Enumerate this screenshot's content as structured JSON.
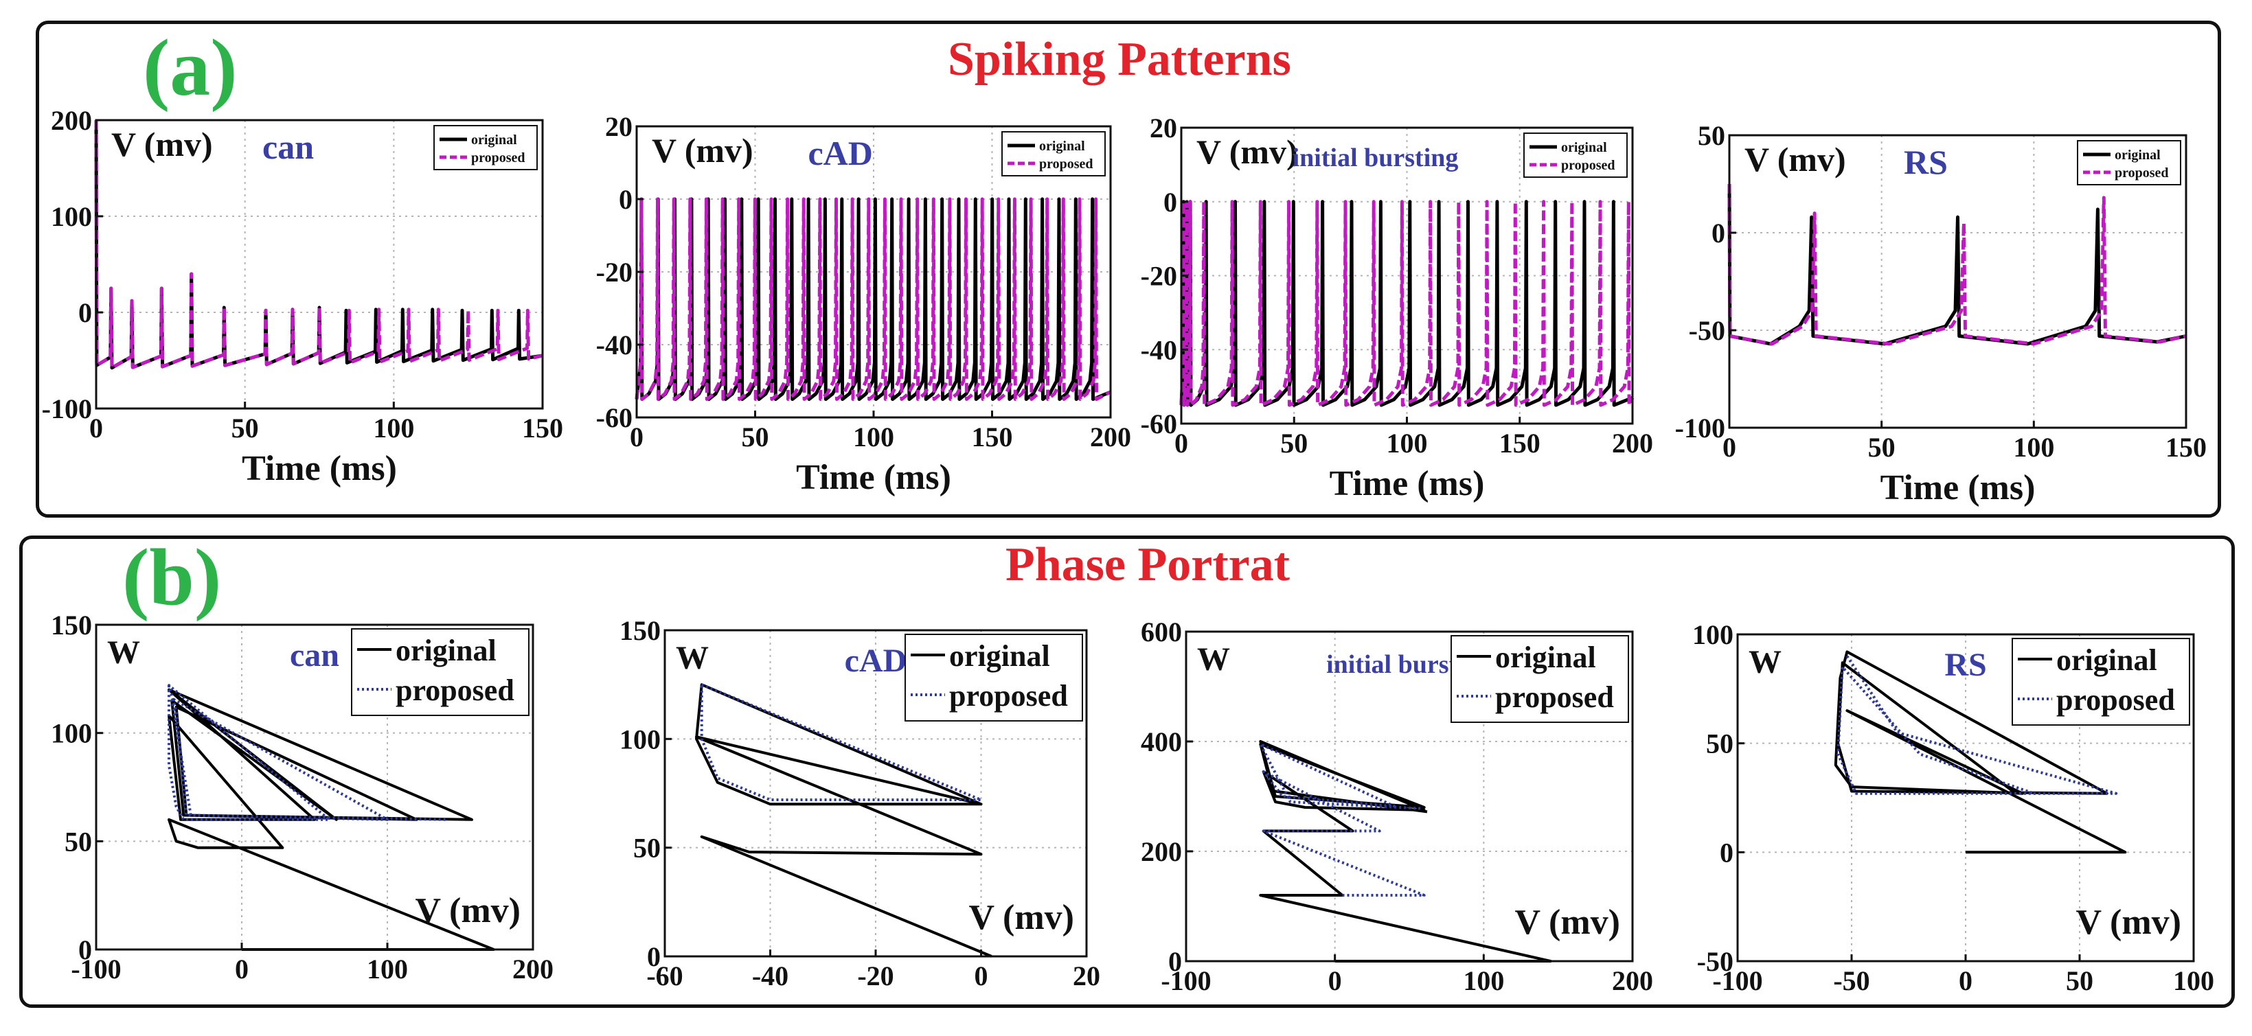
{
  "panels": {
    "a": {
      "letter": "(a)",
      "title": "Spiking Patterns"
    },
    "b": {
      "letter": "(b)",
      "title": "Phase Portrat"
    }
  },
  "colors": {
    "original": "#000000",
    "proposed_spike": "#c01bc0",
    "proposed_phase": "#2c3a9c",
    "panel_letter": "#2db34a",
    "panel_title": "#e3232b",
    "subtitle": "#3a3fa6",
    "grid": "#b5b5b5"
  },
  "chart_data": [
    {
      "type": "line",
      "row": "spiking",
      "title": "can",
      "ylabel": "V (mv)",
      "xlabel": "Time (ms)",
      "xlim": [
        0,
        150
      ],
      "ylim": [
        -100,
        200
      ],
      "xticks": [
        0,
        50,
        100,
        150
      ],
      "yticks": [
        -100,
        0,
        100,
        200
      ],
      "xticklabels": [
        "0",
        "50",
        "100",
        "150"
      ],
      "yticklabels": [
        "-100",
        "0",
        "100",
        "200"
      ],
      "legend": [
        "original",
        "proposed"
      ],
      "series": [
        {
          "name": "original",
          "start": 200,
          "baseline_start": -55,
          "baseline_end": -45,
          "reset": -55,
          "spikes": [
            [
              5,
              25
            ],
            [
              12,
              12
            ],
            [
              22,
              25
            ],
            [
              32,
              40
            ],
            [
              43,
              5
            ],
            [
              57,
              2
            ],
            [
              66,
              3
            ],
            [
              75,
              5
            ],
            [
              84,
              2
            ],
            [
              94,
              3
            ],
            [
              103,
              3
            ],
            [
              113,
              3
            ],
            [
              123,
              2
            ],
            [
              133,
              2
            ],
            [
              142,
              2
            ]
          ]
        },
        {
          "name": "proposed",
          "start": 200,
          "baseline_start": -55,
          "baseline_end": -45,
          "reset": -55,
          "spikes": [
            [
              5,
              25
            ],
            [
              12,
              12
            ],
            [
              22,
              25
            ],
            [
              32,
              40
            ],
            [
              43,
              5
            ],
            [
              57,
              2
            ],
            [
              66,
              3
            ],
            [
              75,
              5
            ],
            [
              85,
              2
            ],
            [
              95,
              3
            ],
            [
              105,
              3
            ],
            [
              115,
              3
            ],
            [
              125,
              2
            ],
            [
              135,
              2
            ],
            [
              145,
              2
            ]
          ]
        }
      ]
    },
    {
      "type": "line",
      "row": "spiking",
      "title": "cAD",
      "ylabel": "V (mv)",
      "xlabel": "Time (ms)",
      "xlim": [
        0,
        200
      ],
      "ylim": [
        -60,
        20
      ],
      "xticks": [
        0,
        50,
        100,
        150,
        200
      ],
      "yticks": [
        -60,
        -40,
        -20,
        0,
        20
      ],
      "xticklabels": [
        "0",
        "50",
        "100",
        "150",
        "200"
      ],
      "yticklabels": [
        "-60",
        "-40",
        "-20",
        "0",
        "20"
      ],
      "legend": [
        "original",
        "proposed"
      ],
      "series": [
        {
          "name": "original",
          "reset": -55,
          "first": 2,
          "period": 7.05,
          "count": 28,
          "peak": 0,
          "rise_from": -50
        },
        {
          "name": "proposed",
          "reset": -55,
          "first": 2,
          "period": 6.85,
          "count": 29,
          "peak": 0,
          "rise_from": -50
        }
      ]
    },
    {
      "type": "line",
      "row": "spiking",
      "title": "initial bursting",
      "ylabel": "V (mv)",
      "xlabel": "Time (ms)",
      "xlim": [
        0,
        200
      ],
      "ylim": [
        -60,
        20
      ],
      "xticks": [
        0,
        50,
        100,
        150,
        200
      ],
      "yticks": [
        -60,
        -40,
        -20,
        0,
        20
      ],
      "xticklabels": [
        "0",
        "50",
        "100",
        "150",
        "200"
      ],
      "yticklabels": [
        "-60",
        "-40",
        "-20",
        "0",
        "20"
      ],
      "legend": [
        "original",
        "proposed"
      ],
      "series": [
        {
          "name": "original",
          "reset": -55,
          "burst": [
            1,
            2.5,
            4
          ],
          "first": 11,
          "period": 12.9,
          "count": 15,
          "peak": 0,
          "rise_from": -50
        },
        {
          "name": "proposed",
          "reset": -55,
          "burst": [
            1,
            2.5,
            4
          ],
          "first": 10,
          "period": 12.55,
          "count": 16,
          "peak": 0,
          "rise_from": -50
        }
      ]
    },
    {
      "type": "line",
      "row": "spiking",
      "title": "RS",
      "ylabel": "V (mv)",
      "xlabel": "Time (ms)",
      "xlim": [
        0,
        150
      ],
      "ylim": [
        -100,
        50
      ],
      "xticks": [
        0,
        50,
        100,
        150
      ],
      "yticks": [
        -100,
        -50,
        0,
        50
      ],
      "xticklabels": [
        "0",
        "50",
        "100",
        "150"
      ],
      "yticklabels": [
        "-100",
        "-50",
        "0",
        "50"
      ],
      "legend": [
        "original",
        "proposed"
      ],
      "series": [
        {
          "name": "original",
          "start": 25,
          "reset": -53,
          "trough": -57,
          "spikes": [
            [
              27,
              8
            ],
            [
              75,
              8
            ],
            [
              121,
              12
            ]
          ],
          "pre": -40
        },
        {
          "name": "proposed",
          "start": 25,
          "reset": -53,
          "trough": -57,
          "spikes": [
            [
              28,
              10
            ],
            [
              77,
              5
            ],
            [
              123,
              18
            ]
          ],
          "pre": -40
        }
      ]
    },
    {
      "type": "line",
      "row": "phase",
      "title": "can",
      "ylabel": "W",
      "xlabel": "V (mv)",
      "xlim": [
        -100,
        200
      ],
      "ylim": [
        0,
        150
      ],
      "xticks": [
        -100,
        0,
        100,
        200
      ],
      "yticks": [
        0,
        50,
        100,
        150
      ],
      "xticklabels": [
        "-100",
        "0",
        "100",
        "200"
      ],
      "yticklabels": [
        "0",
        "50",
        "100",
        "150"
      ],
      "legend": [
        "original",
        "proposed"
      ],
      "series": [
        {
          "name": "original",
          "points": [
            [
              0,
              0
            ],
            [
              173,
              0
            ],
            [
              -50,
              60
            ],
            [
              -45,
              50
            ],
            [
              -30,
              47
            ],
            [
              28,
              47
            ],
            [
              -50,
              108
            ],
            [
              -42,
              60
            ],
            [
              50,
              60
            ],
            [
              -50,
              120
            ],
            [
              65,
              60
            ],
            [
              -48,
              115
            ],
            [
              -40,
              62
            ],
            [
              120,
              60
            ],
            [
              -45,
              112
            ],
            [
              -38,
              62
            ],
            [
              158,
              60
            ],
            [
              -50,
              120
            ]
          ]
        },
        {
          "name": "proposed",
          "points": [
            [
              -50,
              122
            ],
            [
              -50,
              85
            ],
            [
              -45,
              66
            ],
            [
              -40,
              60
            ],
            [
              60,
              60
            ],
            [
              -50,
              122
            ],
            [
              -45,
              110
            ],
            [
              -38,
              62
            ],
            [
              100,
              60
            ],
            [
              -48,
              116
            ],
            [
              -35,
              62
            ],
            [
              140,
              60
            ]
          ]
        }
      ]
    },
    {
      "type": "line",
      "row": "phase",
      "title": "cAD",
      "ylabel": "W",
      "xlabel": "V (mv)",
      "xlim": [
        -60,
        20
      ],
      "ylim": [
        0,
        150
      ],
      "xticks": [
        -60,
        -40,
        -20,
        0,
        20
      ],
      "yticks": [
        0,
        50,
        100,
        150
      ],
      "xticklabels": [
        "-60",
        "-40",
        "-20",
        "0",
        "20"
      ],
      "yticklabels": [
        "0",
        "50",
        "100",
        "150"
      ],
      "legend": [
        "original",
        "proposed"
      ],
      "series": [
        {
          "name": "original",
          "points": [
            [
              2,
              0
            ],
            [
              -53,
              55
            ],
            [
              -44,
              48
            ],
            [
              0,
              47
            ],
            [
              -54,
              101
            ],
            [
              0,
              70
            ],
            [
              -53,
              125
            ],
            [
              0,
              70
            ],
            [
              -40,
              70
            ],
            [
              -50,
              80
            ],
            [
              -54,
              100
            ],
            [
              -53,
              125
            ]
          ]
        },
        {
          "name": "proposed",
          "points": [
            [
              -53,
              125
            ],
            [
              0,
              72
            ],
            [
              -40,
              72
            ],
            [
              -50,
              82
            ],
            [
              -53,
              100
            ],
            [
              -53,
              125
            ]
          ]
        }
      ]
    },
    {
      "type": "line",
      "row": "phase",
      "title": "initial bursting",
      "ylabel": "W",
      "xlabel": "V (mv)",
      "xlim": [
        -100,
        200
      ],
      "ylim": [
        0,
        600
      ],
      "xticks": [
        -100,
        0,
        100,
        200
      ],
      "yticks": [
        0,
        200,
        400,
        600
      ],
      "xticklabels": [
        "-100",
        "0",
        "100",
        "200"
      ],
      "yticklabels": [
        "0",
        "200",
        "400",
        "600"
      ],
      "legend": [
        "original",
        "proposed"
      ],
      "series": [
        {
          "name": "original",
          "points": [
            [
              0,
              0
            ],
            [
              145,
              0
            ],
            [
              -50,
              120
            ],
            [
              5,
              120
            ],
            [
              -48,
              237
            ],
            [
              12,
              237
            ],
            [
              -48,
              345
            ],
            [
              -40,
              290
            ],
            [
              -20,
              280
            ],
            [
              60,
              275
            ],
            [
              -50,
              400
            ],
            [
              -40,
              300
            ],
            [
              60,
              280
            ],
            [
              -50,
              395
            ],
            [
              -42,
              310
            ],
            [
              62,
              272
            ]
          ]
        },
        {
          "name": "proposed",
          "points": [
            [
              5,
              120
            ],
            [
              60,
              120
            ],
            [
              -48,
              237
            ],
            [
              30,
              237
            ],
            [
              -48,
              345
            ],
            [
              -35,
              300
            ],
            [
              40,
              282
            ],
            [
              -50,
              395
            ],
            [
              -30,
              290
            ],
            [
              58,
              278
            ]
          ]
        }
      ]
    },
    {
      "type": "line",
      "row": "phase",
      "title": "RS",
      "ylabel": "W",
      "xlabel": "V (mv)",
      "xlim": [
        -100,
        100
      ],
      "ylim": [
        -50,
        100
      ],
      "xticks": [
        -100,
        -50,
        0,
        50,
        100
      ],
      "yticks": [
        -50,
        0,
        50,
        100
      ],
      "xticklabels": [
        "-100",
        "-50",
        "0",
        "50",
        "100"
      ],
      "yticklabels": [
        "-50",
        "0",
        "50",
        "100"
      ],
      "legend": [
        "original",
        "proposed"
      ],
      "series": [
        {
          "name": "original",
          "points": [
            [
              0,
              0
            ],
            [
              70,
              0
            ],
            [
              -52,
              65
            ],
            [
              25,
              27
            ],
            [
              -50,
              30
            ],
            [
              -57,
              40
            ],
            [
              -55,
              80
            ],
            [
              -52,
              92
            ],
            [
              62,
              27
            ],
            [
              -50,
              28
            ],
            [
              -56,
              50
            ],
            [
              -54,
              87
            ],
            [
              22,
              27
            ]
          ]
        },
        {
          "name": "proposed",
          "points": [
            [
              -52,
              90
            ],
            [
              -30,
              55
            ],
            [
              66,
              27
            ],
            [
              -48,
              27
            ],
            [
              -56,
              45
            ],
            [
              -54,
              85
            ],
            [
              -20,
              45
            ],
            [
              30,
              27
            ]
          ]
        }
      ]
    }
  ]
}
